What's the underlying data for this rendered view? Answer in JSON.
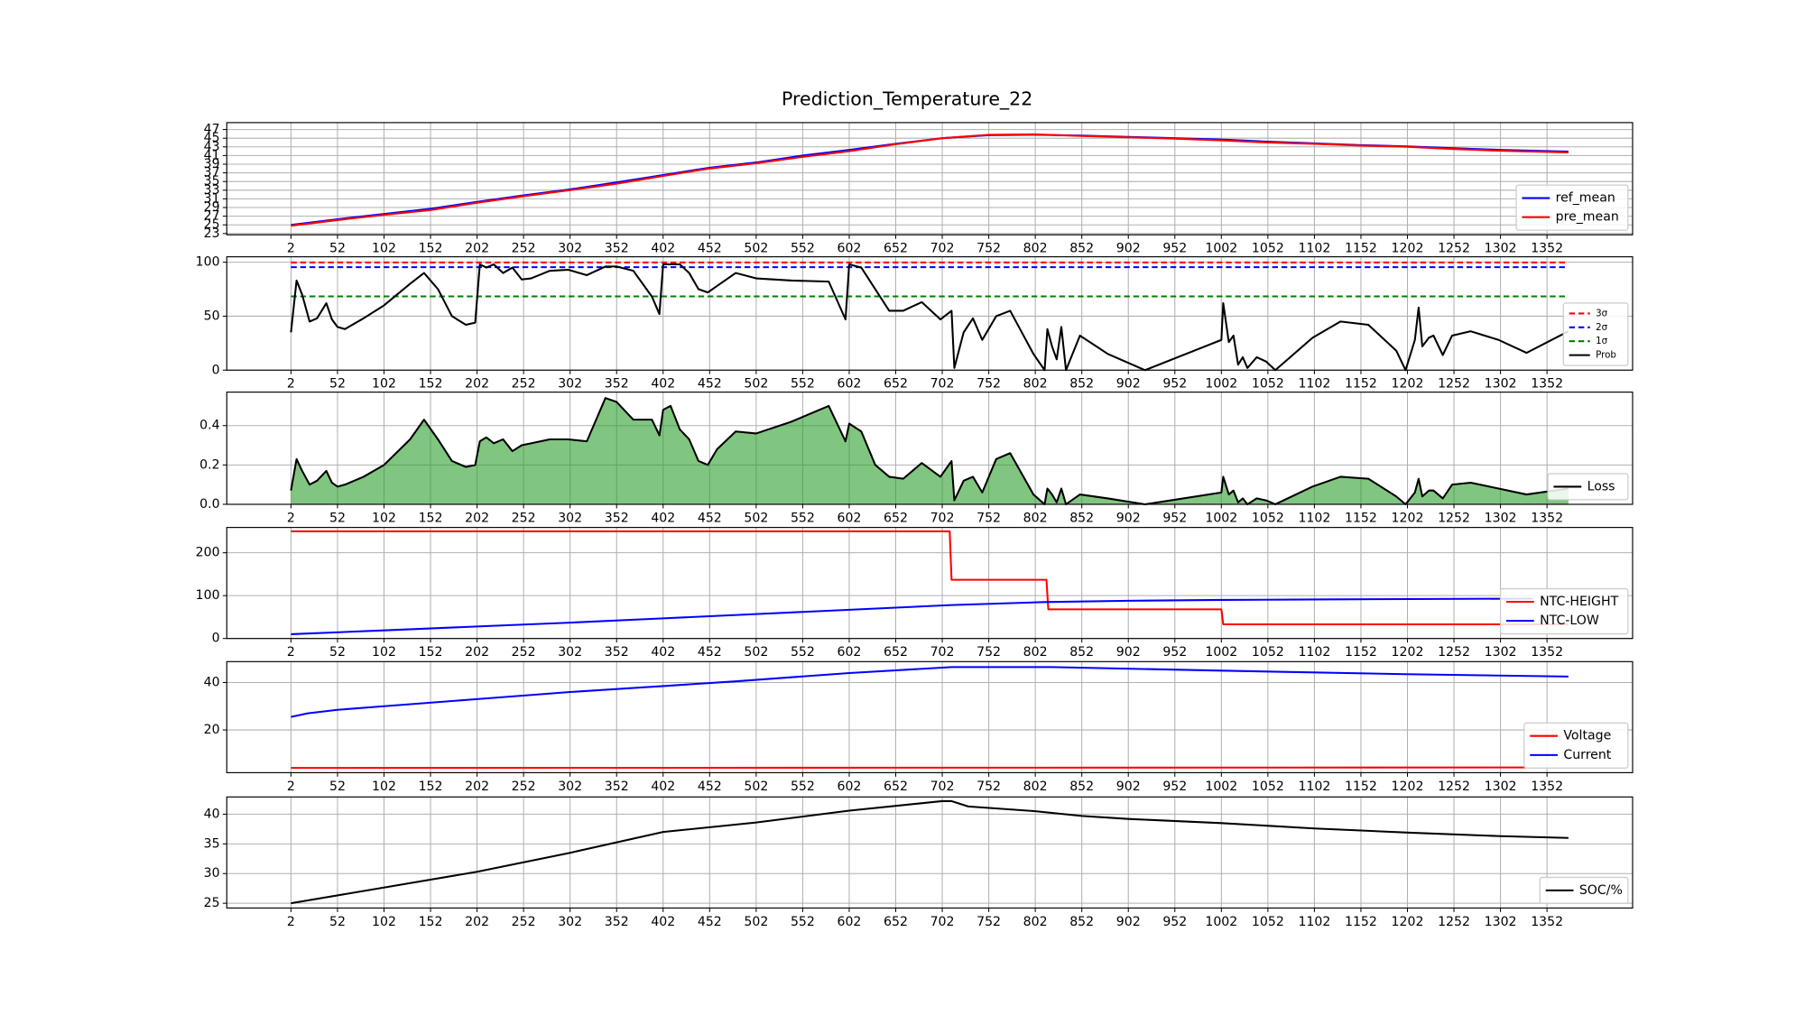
{
  "chart_data": [
    {
      "type": "line",
      "title": "Prediction_Temperature_22",
      "xlim": [
        -67,
        1444
      ],
      "ylim": [
        22.7,
        48.6
      ],
      "xticks": [
        2,
        52,
        102,
        152,
        202,
        252,
        302,
        352,
        402,
        452,
        502,
        552,
        602,
        652,
        702,
        752,
        802,
        852,
        902,
        952,
        1002,
        1052,
        1102,
        1152,
        1202,
        1252,
        1302,
        1352
      ],
      "yticks": [
        23,
        25,
        27,
        29,
        31,
        33,
        35,
        37,
        39,
        41,
        43,
        45,
        47
      ],
      "grid": true,
      "legend": "lower right",
      "x": [
        2,
        52,
        102,
        152,
        202,
        252,
        302,
        352,
        402,
        452,
        502,
        552,
        602,
        652,
        702,
        752,
        802,
        852,
        902,
        952,
        1002,
        1052,
        1102,
        1152,
        1202,
        1252,
        1302,
        1375
      ],
      "series": [
        {
          "name": "ref_mean",
          "color": "#0000ff",
          "values": [
            25,
            26.3,
            27.5,
            28.7,
            30.3,
            31.8,
            33.2,
            34.8,
            36.5,
            38.2,
            39.4,
            41,
            42.3,
            43.7,
            45,
            45.7,
            45.8,
            45.6,
            45.3,
            45,
            44.7,
            44.2,
            43.8,
            43.4,
            43.1,
            42.7,
            42.3,
            41.9
          ]
        },
        {
          "name": "pre_mean",
          "color": "#ff0000",
          "values": [
            24.8,
            26.1,
            27.3,
            28.4,
            30.1,
            31.6,
            33,
            34.5,
            36.3,
            38,
            39.2,
            40.7,
            42,
            43.6,
            45,
            45.8,
            45.9,
            45.5,
            45.2,
            44.9,
            44.5,
            44,
            43.7,
            43.3,
            43,
            42.5,
            42.1,
            41.7
          ]
        }
      ]
    },
    {
      "type": "line",
      "xlim": [
        -67,
        1444
      ],
      "ylim": [
        0,
        105
      ],
      "xticks": [
        2,
        52,
        102,
        152,
        202,
        252,
        302,
        352,
        402,
        452,
        502,
        552,
        602,
        652,
        702,
        752,
        802,
        852,
        902,
        952,
        1002,
        1052,
        1102,
        1152,
        1202,
        1252,
        1302,
        1352
      ],
      "yticks": [
        0,
        50,
        100
      ],
      "grid": true,
      "legend": "lower right",
      "x": [
        2,
        8,
        14,
        22,
        30,
        40,
        46,
        52,
        60,
        80,
        102,
        130,
        145,
        160,
        175,
        190,
        200,
        205,
        212,
        220,
        230,
        240,
        250,
        260,
        280,
        300,
        320,
        340,
        352,
        370,
        390,
        398,
        402,
        410,
        420,
        430,
        440,
        450,
        460,
        480,
        502,
        540,
        580,
        598,
        602,
        615,
        630,
        645,
        660,
        680,
        700,
        712,
        715,
        725,
        735,
        745,
        760,
        775,
        800,
        812,
        815,
        820,
        825,
        830,
        835,
        850,
        880,
        920,
        1002,
        1004,
        1010,
        1015,
        1020,
        1025,
        1030,
        1040,
        1050,
        1060,
        1100,
        1130,
        1160,
        1190,
        1200,
        1210,
        1214,
        1218,
        1225,
        1230,
        1240,
        1250,
        1270,
        1300,
        1330,
        1375
      ],
      "series": [
        {
          "name": "3σ",
          "color": "#ff0000",
          "linestyle": "dashed",
          "x": [
            2,
            1375
          ],
          "values": [
            99.7,
            99.7
          ]
        },
        {
          "name": "2σ",
          "color": "#0000ff",
          "linestyle": "dashed",
          "x": [
            2,
            1375
          ],
          "values": [
            95.4,
            95.4
          ]
        },
        {
          "name": "1σ",
          "color": "#008000",
          "linestyle": "dashed",
          "x": [
            2,
            1375
          ],
          "values": [
            68.3,
            68.3
          ]
        },
        {
          "name": "Prob",
          "color": "#000000",
          "values": [
            35,
            83,
            70,
            45,
            48,
            62,
            47,
            40,
            38,
            48,
            60,
            80,
            90,
            75,
            50,
            42,
            44,
            98,
            95,
            98,
            90,
            95,
            84,
            85,
            92,
            93,
            88,
            96,
            96,
            92,
            68,
            52,
            98,
            98,
            98,
            90,
            75,
            72,
            78,
            90,
            85,
            83,
            82,
            47,
            98,
            95,
            75,
            55,
            55,
            63,
            47,
            55,
            2,
            35,
            48,
            28,
            50,
            55,
            15,
            0,
            38,
            22,
            10,
            40,
            0,
            32,
            15,
            0,
            28,
            62,
            26,
            32,
            5,
            12,
            2,
            12,
            8,
            0,
            30,
            45,
            42,
            18,
            0,
            28,
            58,
            22,
            30,
            32,
            14,
            32,
            36,
            28,
            16,
            36
          ]
        }
      ]
    },
    {
      "type": "area",
      "xlim": [
        -67,
        1444
      ],
      "ylim": [
        0,
        0.57
      ],
      "xticks": [
        2,
        52,
        102,
        152,
        202,
        252,
        302,
        352,
        402,
        452,
        502,
        552,
        602,
        652,
        702,
        752,
        802,
        852,
        902,
        952,
        1002,
        1052,
        1102,
        1152,
        1202,
        1252,
        1302,
        1352
      ],
      "yticks": [
        {
          "value": 0,
          "label": "0.0"
        },
        0.2,
        0.4
      ],
      "grid": true,
      "legend": "lower right",
      "fill_color": "#2ca02c",
      "x": [
        2,
        8,
        14,
        22,
        30,
        40,
        46,
        52,
        60,
        80,
        102,
        130,
        145,
        160,
        175,
        190,
        200,
        205,
        212,
        220,
        230,
        240,
        250,
        260,
        280,
        300,
        320,
        340,
        352,
        370,
        390,
        398,
        402,
        410,
        420,
        430,
        440,
        450,
        460,
        480,
        502,
        540,
        580,
        598,
        602,
        615,
        630,
        645,
        660,
        680,
        700,
        712,
        715,
        725,
        735,
        745,
        760,
        775,
        800,
        812,
        815,
        820,
        825,
        830,
        835,
        850,
        880,
        920,
        1002,
        1004,
        1010,
        1015,
        1020,
        1025,
        1030,
        1040,
        1050,
        1060,
        1100,
        1130,
        1160,
        1190,
        1200,
        1210,
        1214,
        1218,
        1225,
        1230,
        1240,
        1250,
        1270,
        1300,
        1330,
        1375
      ],
      "series": [
        {
          "name": "Loss",
          "color": "#000000",
          "values": [
            0.07,
            0.23,
            0.17,
            0.1,
            0.12,
            0.17,
            0.11,
            0.09,
            0.1,
            0.14,
            0.2,
            0.33,
            0.43,
            0.33,
            0.22,
            0.19,
            0.2,
            0.32,
            0.34,
            0.31,
            0.33,
            0.27,
            0.3,
            0.31,
            0.33,
            0.33,
            0.32,
            0.54,
            0.52,
            0.43,
            0.43,
            0.35,
            0.48,
            0.5,
            0.38,
            0.33,
            0.22,
            0.2,
            0.28,
            0.37,
            0.36,
            0.42,
            0.5,
            0.32,
            0.41,
            0.37,
            0.2,
            0.14,
            0.13,
            0.21,
            0.14,
            0.22,
            0.02,
            0.12,
            0.14,
            0.06,
            0.23,
            0.26,
            0.05,
            0,
            0.08,
            0.05,
            0.01,
            0.08,
            0,
            0.05,
            0.03,
            0,
            0.06,
            0.14,
            0.05,
            0.07,
            0.01,
            0.03,
            0,
            0.03,
            0.02,
            0,
            0.09,
            0.14,
            0.13,
            0.04,
            0,
            0.06,
            0.13,
            0.04,
            0.07,
            0.07,
            0.03,
            0.1,
            0.11,
            0.08,
            0.05,
            0.08
          ]
        }
      ]
    },
    {
      "type": "line",
      "xlim": [
        -67,
        1444
      ],
      "ylim": [
        0,
        259
      ],
      "xticks": [
        2,
        52,
        102,
        152,
        202,
        252,
        302,
        352,
        402,
        452,
        502,
        552,
        602,
        652,
        702,
        752,
        802,
        852,
        902,
        952,
        1002,
        1052,
        1102,
        1152,
        1202,
        1252,
        1302,
        1352
      ],
      "yticks": [
        0,
        100,
        200
      ],
      "grid": true,
      "legend": "lower right",
      "series": [
        {
          "name": "NTC-HEIGHT",
          "color": "#ff0000",
          "x": [
            2,
            710,
            712,
            814,
            816,
            1002,
            1004,
            1375
          ],
          "values": [
            250,
            250,
            137,
            137,
            68,
            68,
            33,
            33
          ]
        },
        {
          "name": "NTC-LOW",
          "color": "#0000ff",
          "x": [
            2,
            102,
            202,
            302,
            402,
            502,
            602,
            712,
            812,
            902,
            1002,
            1102,
            1202,
            1337
          ],
          "values": [
            10,
            19,
            28,
            37,
            47,
            57,
            67,
            78,
            85,
            88,
            90,
            91,
            92,
            93
          ]
        }
      ]
    },
    {
      "type": "line",
      "xlim": [
        -67,
        1444
      ],
      "ylim": [
        2,
        48.8
      ],
      "xticks": [
        2,
        52,
        102,
        152,
        202,
        252,
        302,
        352,
        402,
        452,
        502,
        552,
        602,
        652,
        702,
        752,
        802,
        852,
        902,
        952,
        1002,
        1052,
        1102,
        1152,
        1202,
        1252,
        1302,
        1352
      ],
      "yticks": [
        20,
        40
      ],
      "grid": true,
      "legend": "lower right",
      "series": [
        {
          "name": "Voltage",
          "color": "#ff0000",
          "x": [
            2,
            1330
          ],
          "values": [
            4,
            4.2
          ]
        },
        {
          "name": "Current",
          "color": "#0000ff",
          "x": [
            2,
            20,
            52,
            102,
            202,
            302,
            402,
            480,
            602,
            712,
            820,
            1002,
            1200,
            1375
          ],
          "values": [
            25.5,
            27,
            28.5,
            30,
            33,
            36,
            38.5,
            40.5,
            44,
            46.5,
            46.5,
            45,
            43.5,
            42.5
          ]
        }
      ]
    },
    {
      "type": "line",
      "xlim": [
        -67,
        1444
      ],
      "ylim": [
        24.2,
        42.9
      ],
      "xticks": [
        2,
        52,
        102,
        152,
        202,
        252,
        302,
        352,
        402,
        452,
        502,
        552,
        602,
        652,
        702,
        752,
        802,
        852,
        902,
        952,
        1002,
        1052,
        1102,
        1152,
        1202,
        1252,
        1302,
        1352
      ],
      "yticks": [
        25,
        30,
        35,
        40
      ],
      "grid": true,
      "legend": "lower right",
      "series": [
        {
          "name": "SOC/%",
          "color": "#000000",
          "x": [
            2,
            202,
            302,
            402,
            502,
            602,
            702,
            712,
            730,
            802,
            852,
            902,
            1002,
            1102,
            1202,
            1302,
            1375
          ],
          "values": [
            25,
            30.3,
            33.5,
            37,
            38.6,
            40.6,
            42.2,
            42.2,
            41.3,
            40.5,
            39.7,
            39.2,
            38.5,
            37.6,
            36.9,
            36.3,
            36
          ]
        }
      ]
    }
  ]
}
